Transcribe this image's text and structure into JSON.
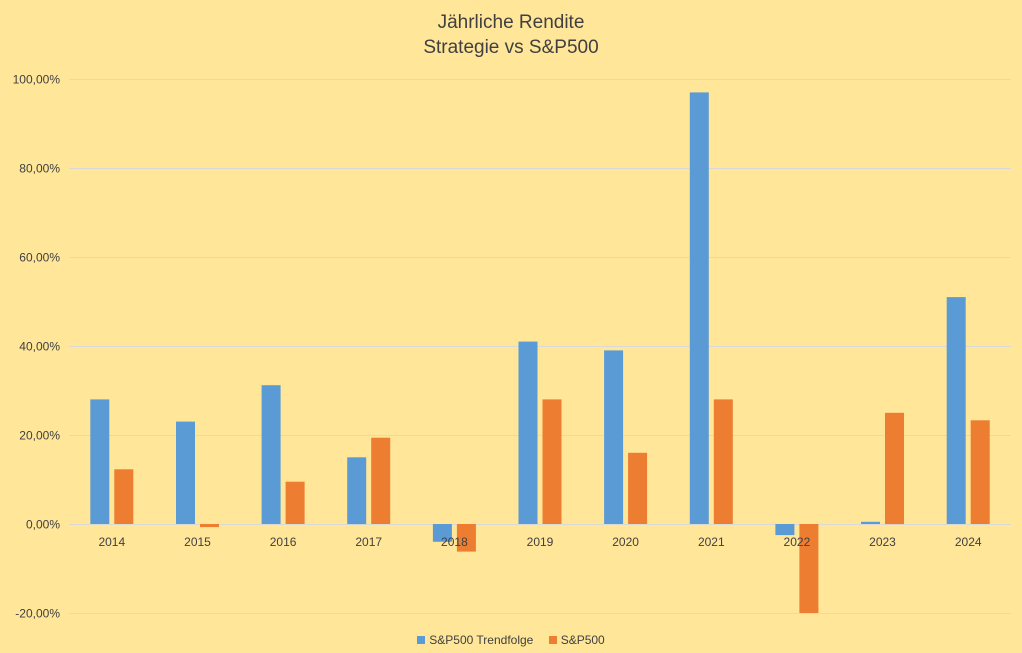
{
  "chart_data": {
    "type": "bar",
    "title": "Jährliche Rendite",
    "subtitle": "Strategie vs S&P500",
    "categories": [
      "2014",
      "2015",
      "2016",
      "2017",
      "2018",
      "2019",
      "2020",
      "2021",
      "2022",
      "2023",
      "2024"
    ],
    "series": [
      {
        "name": "S&P500 Trendfolge",
        "color": "#5B9BD5",
        "values": [
          28.0,
          23.0,
          31.2,
          15.0,
          -4.0,
          41.0,
          39.0,
          97.0,
          -2.5,
          0.5,
          51.0
        ]
      },
      {
        "name": "S&P500",
        "color": "#ED7D31",
        "values": [
          12.3,
          -0.7,
          9.5,
          19.4,
          -6.2,
          28.0,
          16.0,
          28.0,
          -20.0,
          25.0,
          23.3
        ]
      }
    ],
    "ylim": [
      -20,
      100
    ],
    "yticks": [
      "-20,00%",
      "0,00%",
      "20,00%",
      "40,00%",
      "60,00%",
      "80,00%",
      "100,00%"
    ],
    "grid": true,
    "legend_position": "bottom",
    "background": "#FFE699",
    "gridline_color": "#D9D9D9"
  }
}
